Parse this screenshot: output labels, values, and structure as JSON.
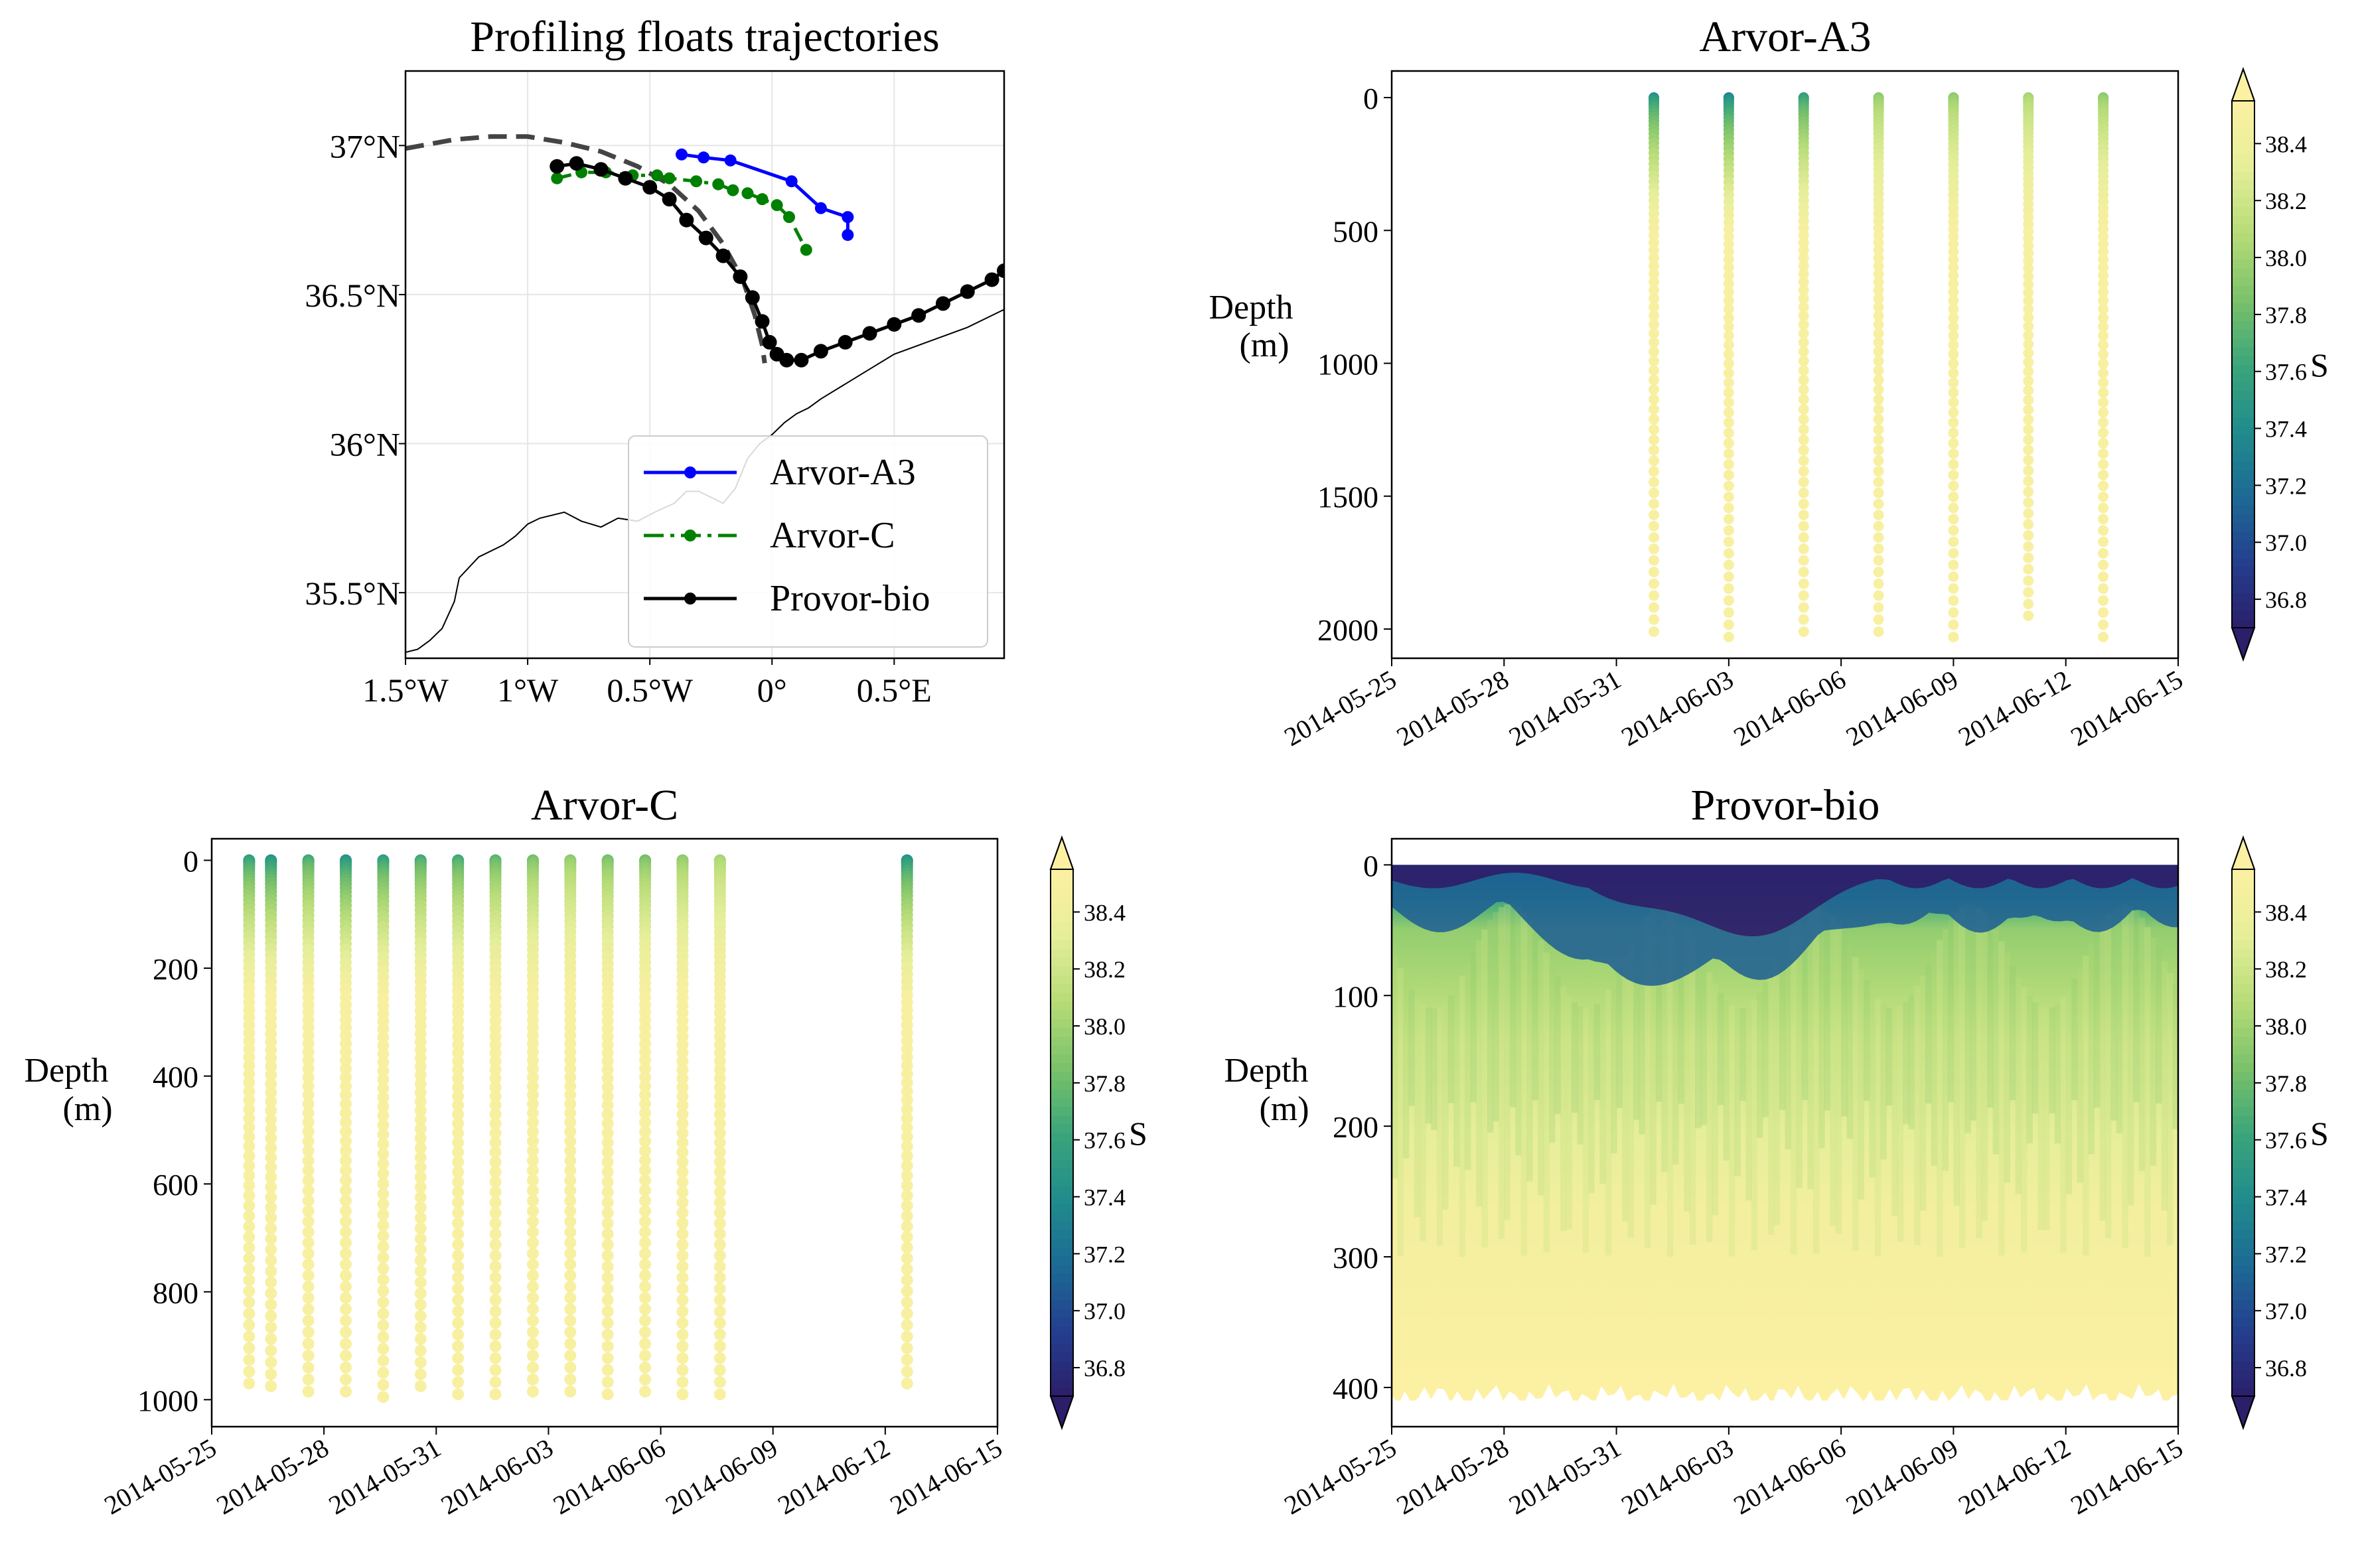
{
  "chart_data": [
    {
      "type": "line",
      "title": "Profiling floats trajectories",
      "xlim": [
        -1.5,
        0.95
      ],
      "ylim": [
        35.28,
        37.25
      ],
      "xticks": [
        -1.5,
        -1.0,
        -0.5,
        0.0,
        0.5
      ],
      "xtick_labels": [
        "1.5°W",
        "1°W",
        "0.5°W",
        "0°",
        "0.5°E"
      ],
      "yticks": [
        35.5,
        36.0,
        36.5,
        37.0
      ],
      "ytick_labels": [
        "35.5°N",
        "36°N",
        "36.5°N",
        "37°N"
      ],
      "grid": true,
      "legend_position": "lower-right",
      "series": [
        {
          "name": "Arvor-A3",
          "color": "#0000ff",
          "style": "solid",
          "lon": [
            -0.37,
            -0.28,
            -0.17,
            0.08,
            0.2,
            0.31,
            0.31
          ],
          "lat": [
            36.97,
            36.96,
            36.95,
            36.88,
            36.79,
            36.76,
            36.7
          ]
        },
        {
          "name": "Arvor-C",
          "color": "#008000",
          "style": "dashdot",
          "lon": [
            -0.88,
            -0.78,
            -0.68,
            -0.57,
            -0.47,
            -0.42,
            -0.31,
            -0.22,
            -0.16,
            -0.1,
            -0.04,
            0.02,
            0.07,
            0.14
          ],
          "lat": [
            36.89,
            36.91,
            36.91,
            36.9,
            36.9,
            36.89,
            36.88,
            36.87,
            36.85,
            36.84,
            36.82,
            36.8,
            36.76,
            36.65
          ]
        },
        {
          "name": "Provor-bio",
          "color": "#000000",
          "style": "solid",
          "lon": [
            -0.88,
            -0.8,
            -0.7,
            -0.6,
            -0.5,
            -0.42,
            -0.35,
            -0.27,
            -0.2,
            -0.13,
            -0.08,
            -0.04,
            -0.01,
            0.02,
            0.06,
            0.12,
            0.2,
            0.3,
            0.4,
            0.5,
            0.6,
            0.7,
            0.8,
            0.9,
            0.95
          ],
          "lat": [
            36.93,
            36.94,
            36.92,
            36.89,
            36.86,
            36.82,
            36.75,
            36.69,
            36.63,
            36.56,
            36.49,
            36.41,
            36.34,
            36.3,
            36.28,
            36.28,
            36.31,
            36.34,
            36.37,
            36.4,
            36.43,
            36.47,
            36.51,
            36.55,
            36.58
          ]
        }
      ],
      "dashed_boundary": {
        "color": "#444444",
        "lon": [
          -1.5,
          -1.3,
          -1.15,
          -1.0,
          -0.85,
          -0.7,
          -0.55,
          -0.42,
          -0.3,
          -0.2,
          -0.12,
          -0.07,
          -0.04,
          -0.03
        ],
        "lat": [
          36.99,
          37.02,
          37.03,
          37.03,
          37.01,
          36.98,
          36.93,
          36.87,
          36.78,
          36.67,
          36.55,
          36.43,
          36.33,
          36.27
        ]
      },
      "coastline": {
        "lon": [
          -1.5,
          -1.45,
          -1.4,
          -1.35,
          -1.3,
          -1.28,
          -1.2,
          -1.1,
          -1.05,
          -1.0,
          -0.95,
          -0.85,
          -0.78,
          -0.7,
          -0.63,
          -0.55,
          -0.48,
          -0.4,
          -0.35,
          -0.3,
          -0.25,
          -0.2,
          -0.15,
          -0.1,
          -0.05,
          0.0,
          0.05,
          0.1,
          0.15,
          0.2,
          0.3,
          0.4,
          0.5,
          0.6,
          0.7,
          0.8,
          0.9,
          0.95
        ],
        "lat": [
          35.3,
          35.31,
          35.34,
          35.38,
          35.47,
          35.55,
          35.62,
          35.66,
          35.69,
          35.73,
          35.75,
          35.77,
          35.74,
          35.72,
          35.75,
          35.74,
          35.77,
          35.8,
          35.84,
          35.84,
          35.82,
          35.8,
          35.85,
          35.95,
          36.0,
          36.03,
          36.07,
          36.1,
          36.12,
          36.15,
          36.2,
          36.25,
          36.3,
          36.33,
          36.36,
          36.39,
          36.43,
          36.45
        ]
      }
    },
    {
      "type": "scatter",
      "title": "Arvor-A3",
      "ylabel": "Depth\n(m)",
      "colorbar_label": "S",
      "x_dates": [
        "2014-05-25",
        "2014-05-28",
        "2014-05-31",
        "2014-06-03",
        "2014-06-06",
        "2014-06-09",
        "2014-06-12",
        "2014-06-15"
      ],
      "xlim": [
        "2014-05-25",
        "2014-06-15"
      ],
      "ylim": [
        2110,
        -100
      ],
      "yticks": [
        0,
        500,
        1000,
        1500,
        2000
      ],
      "profile_dates": [
        "2014-06-01",
        "2014-06-03",
        "2014-06-05",
        "2014-06-07",
        "2014-06-09",
        "2014-06-11",
        "2014-06-13"
      ],
      "profile_max_depth": [
        2010,
        2030,
        2010,
        2010,
        2030,
        1950,
        2030
      ],
      "profile_surface_salinity": [
        37.4,
        37.3,
        37.5,
        37.9,
        37.9,
        38.0,
        37.9
      ]
    },
    {
      "type": "scatter",
      "title": "Arvor-C",
      "ylabel": "Depth\n(m)",
      "colorbar_label": "S",
      "x_dates": [
        "2014-05-25",
        "2014-05-28",
        "2014-05-31",
        "2014-06-03",
        "2014-06-06",
        "2014-06-09",
        "2014-06-12",
        "2014-06-15"
      ],
      "xlim": [
        "2014-05-25",
        "2014-06-15"
      ],
      "ylim": [
        1050,
        -40
      ],
      "yticks": [
        0,
        200,
        400,
        600,
        800,
        1000
      ],
      "profile_dates": [
        "2014-05-26",
        "2014-05-26 14:00",
        "2014-05-27 14:00",
        "2014-05-28 14:00",
        "2014-05-29 14:00",
        "2014-05-30 14:00",
        "2014-05-31 14:00",
        "2014-06-01 14:00",
        "2014-06-02 14:00",
        "2014-06-03 14:00",
        "2014-06-04 14:00",
        "2014-06-05 14:00",
        "2014-06-06 14:00",
        "2014-06-07 14:00",
        "2014-06-12 14:00"
      ],
      "profile_max_depth": [
        970,
        975,
        985,
        985,
        995,
        975,
        990,
        990,
        985,
        985,
        990,
        985,
        990,
        990,
        970
      ],
      "profile_surface_salinity": [
        37.5,
        37.4,
        37.6,
        37.4,
        37.5,
        37.6,
        37.6,
        37.7,
        37.8,
        37.9,
        37.8,
        37.8,
        37.9,
        38.0,
        37.4
      ]
    },
    {
      "type": "heatmap",
      "title": "Provor-bio",
      "ylabel": "Depth\n(m)",
      "colorbar_label": "S",
      "x_dates": [
        "2014-05-25",
        "2014-05-28",
        "2014-05-31",
        "2014-06-03",
        "2014-06-06",
        "2014-06-09",
        "2014-06-12",
        "2014-06-15"
      ],
      "xlim": [
        "2014-05-25",
        "2014-06-15"
      ],
      "ylim": [
        430,
        -20
      ],
      "yticks": [
        0,
        100,
        200,
        300,
        400
      ],
      "max_depth": 410
    }
  ],
  "colorbar": {
    "ticks": [
      36.8,
      37.0,
      37.2,
      37.4,
      37.6,
      37.8,
      38.0,
      38.2,
      38.4
    ],
    "vmin": 36.7,
    "vmax": 38.55,
    "colormap": [
      "#2c1e6a",
      "#243f8e",
      "#1c6a94",
      "#218c8c",
      "#3ba57a",
      "#7bc26a",
      "#b7dc78",
      "#e6ee9a",
      "#fdf0a3"
    ]
  }
}
